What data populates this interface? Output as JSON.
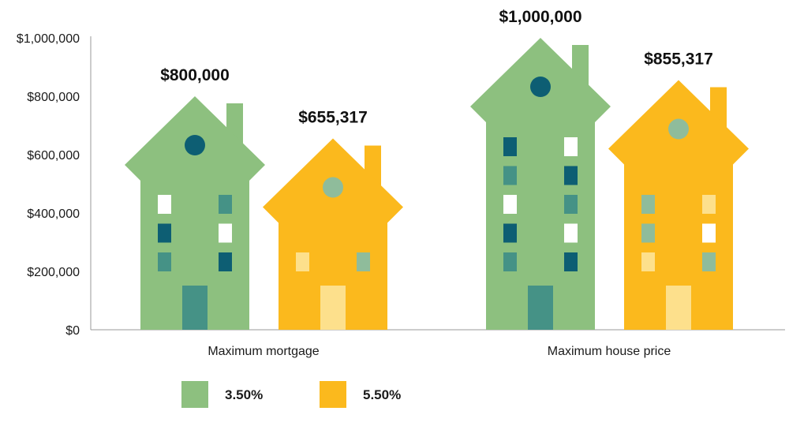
{
  "chart_data": {
    "type": "bar",
    "title": "",
    "xlabel": "",
    "ylabel": "",
    "categories": [
      "Maximum mortgage",
      "Maximum house price"
    ],
    "series": [
      {
        "name": "3.50%",
        "values": [
          800000,
          1000000
        ],
        "value_labels": [
          "$800,000",
          "$1,000,000"
        ]
      },
      {
        "name": "5.50%",
        "values": [
          655317,
          855317
        ],
        "value_labels": [
          "$655,317",
          "$855,317"
        ]
      }
    ],
    "ylim": [
      0,
      1000000
    ],
    "y_ticks": [
      {
        "value": 0,
        "label": "$0"
      },
      {
        "value": 200000,
        "label": "$200,000"
      },
      {
        "value": 400000,
        "label": "$400,000"
      },
      {
        "value": 600000,
        "label": "$600,000"
      },
      {
        "value": 800000,
        "label": "$800,000"
      },
      {
        "value": 1000000,
        "label": "$1,000,000"
      }
    ],
    "grid": false,
    "legend": "bottom-left",
    "bar_style": "house-shaped",
    "colors": {
      "series": [
        "#8dc07f",
        "#fbb91d"
      ],
      "window_green": [
        "#459286",
        "#0d5e73",
        "#ffffff"
      ],
      "window_yellow": [
        "#fde08c",
        "#8fbc9b",
        "#ffffff"
      ],
      "door": [
        "#459286",
        "#fde08c"
      ],
      "circle": [
        "#0d5e73",
        "#8fbc9b"
      ],
      "axis": "#999999"
    }
  }
}
